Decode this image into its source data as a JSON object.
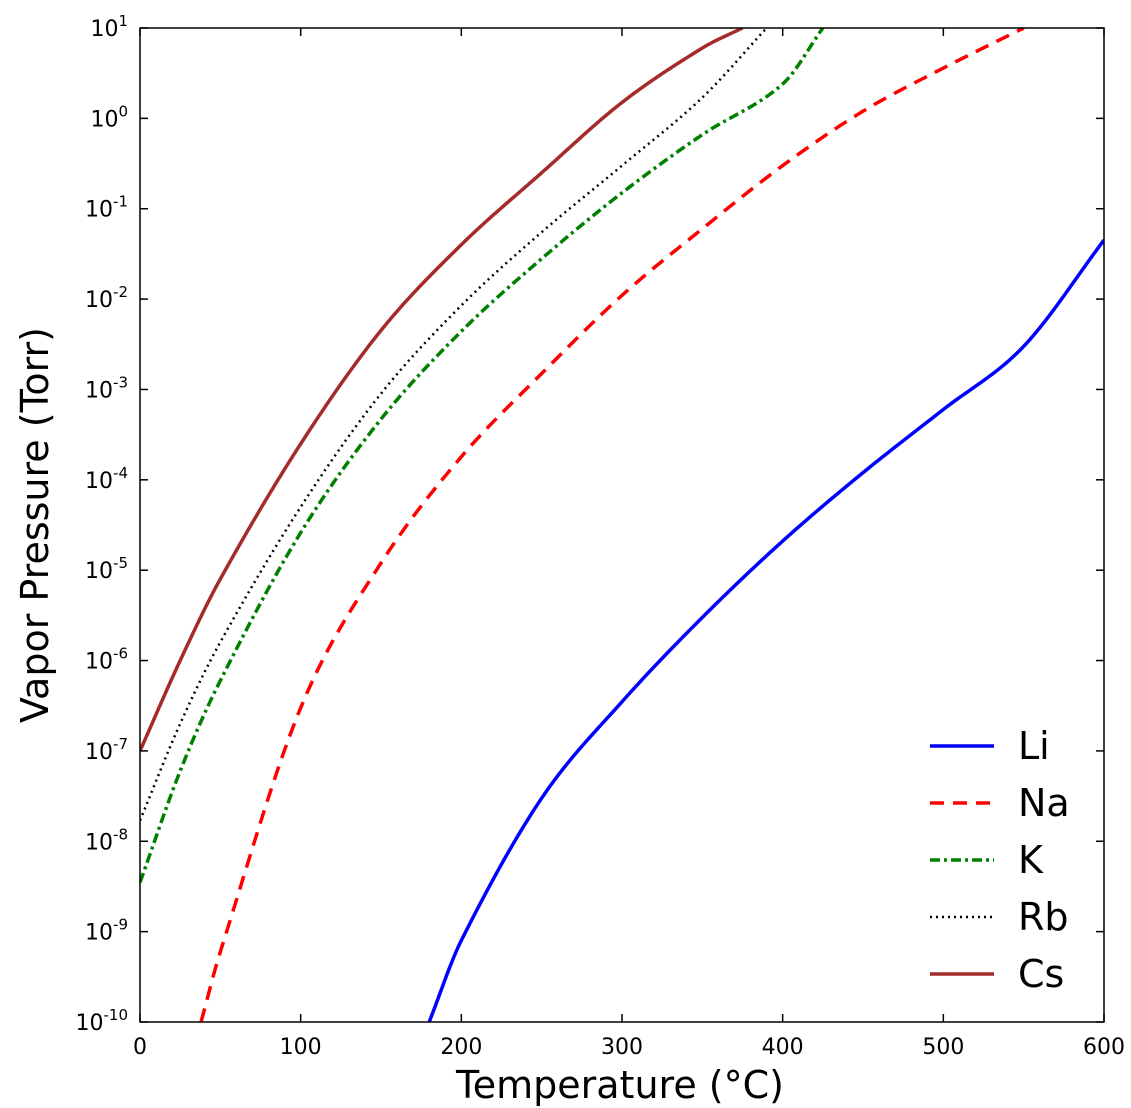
{
  "chart_data": {
    "type": "line",
    "title": "",
    "xlabel": "Temperature (°C)",
    "ylabel": "Vapor Pressure (Torr)",
    "xlim": [
      0,
      600
    ],
    "ylim": [
      1e-10,
      10
    ],
    "yscale": "log",
    "grid": false,
    "legend_position": "bottom-right",
    "x_ticks": [
      "0",
      "100",
      "200",
      "300",
      "400",
      "500",
      "600"
    ],
    "y_ticks": [
      {
        "base": "10",
        "exp": "1"
      },
      {
        "base": "10",
        "exp": "0"
      },
      {
        "base": "10",
        "exp": "-1"
      },
      {
        "base": "10",
        "exp": "-2"
      },
      {
        "base": "10",
        "exp": "-3"
      },
      {
        "base": "10",
        "exp": "-4"
      },
      {
        "base": "10",
        "exp": "-5"
      },
      {
        "base": "10",
        "exp": "-6"
      },
      {
        "base": "10",
        "exp": "-7"
      },
      {
        "base": "10",
        "exp": "-8"
      },
      {
        "base": "10",
        "exp": "-9"
      },
      {
        "base": "10",
        "exp": "-10"
      }
    ],
    "series": [
      {
        "name": "Li",
        "color": "#0000ff",
        "style": "solid",
        "x": [
          180,
          200,
          250,
          300,
          350,
          400,
          450,
          500,
          550,
          600
        ],
        "y": [
          1e-10,
          8e-10,
          3e-08,
          3.5e-07,
          3e-06,
          2.1e-05,
          0.00012,
          0.0006,
          0.003,
          0.045
        ]
      },
      {
        "name": "Na",
        "color": "#ff0000",
        "style": "dashed",
        "x": [
          38,
          50,
          100,
          150,
          200,
          250,
          300,
          350,
          400,
          450,
          500,
          550
        ],
        "y": [
          1e-10,
          6e-10,
          3e-07,
          1.2e-05,
          0.00018,
          0.0015,
          0.011,
          0.06,
          0.3,
          1.2,
          3.6,
          10
        ]
      },
      {
        "name": "K",
        "color": "#008000",
        "style": "dashdot",
        "x": [
          0,
          25,
          50,
          100,
          150,
          200,
          250,
          300,
          350,
          400,
          425
        ],
        "y": [
          3.5e-09,
          6e-08,
          6e-07,
          2.6e-05,
          0.00047,
          0.0044,
          0.028,
          0.15,
          0.66,
          2.4,
          10
        ]
      },
      {
        "name": "Rb",
        "color": "#000000",
        "style": "dotted",
        "x": [
          0,
          25,
          50,
          100,
          150,
          200,
          250,
          300,
          350,
          390
        ],
        "y": [
          1.7e-08,
          2e-07,
          1.6e-06,
          5e-05,
          0.0009,
          0.0085,
          0.055,
          0.3,
          1.7,
          10
        ]
      },
      {
        "name": "Cs",
        "color": "#a52a2a",
        "style": "solid",
        "x": [
          0,
          25,
          50,
          100,
          150,
          200,
          250,
          300,
          350,
          375
        ],
        "y": [
          1e-07,
          1e-06,
          8e-06,
          0.00025,
          0.0045,
          0.04,
          0.25,
          1.5,
          6,
          10
        ]
      }
    ]
  }
}
